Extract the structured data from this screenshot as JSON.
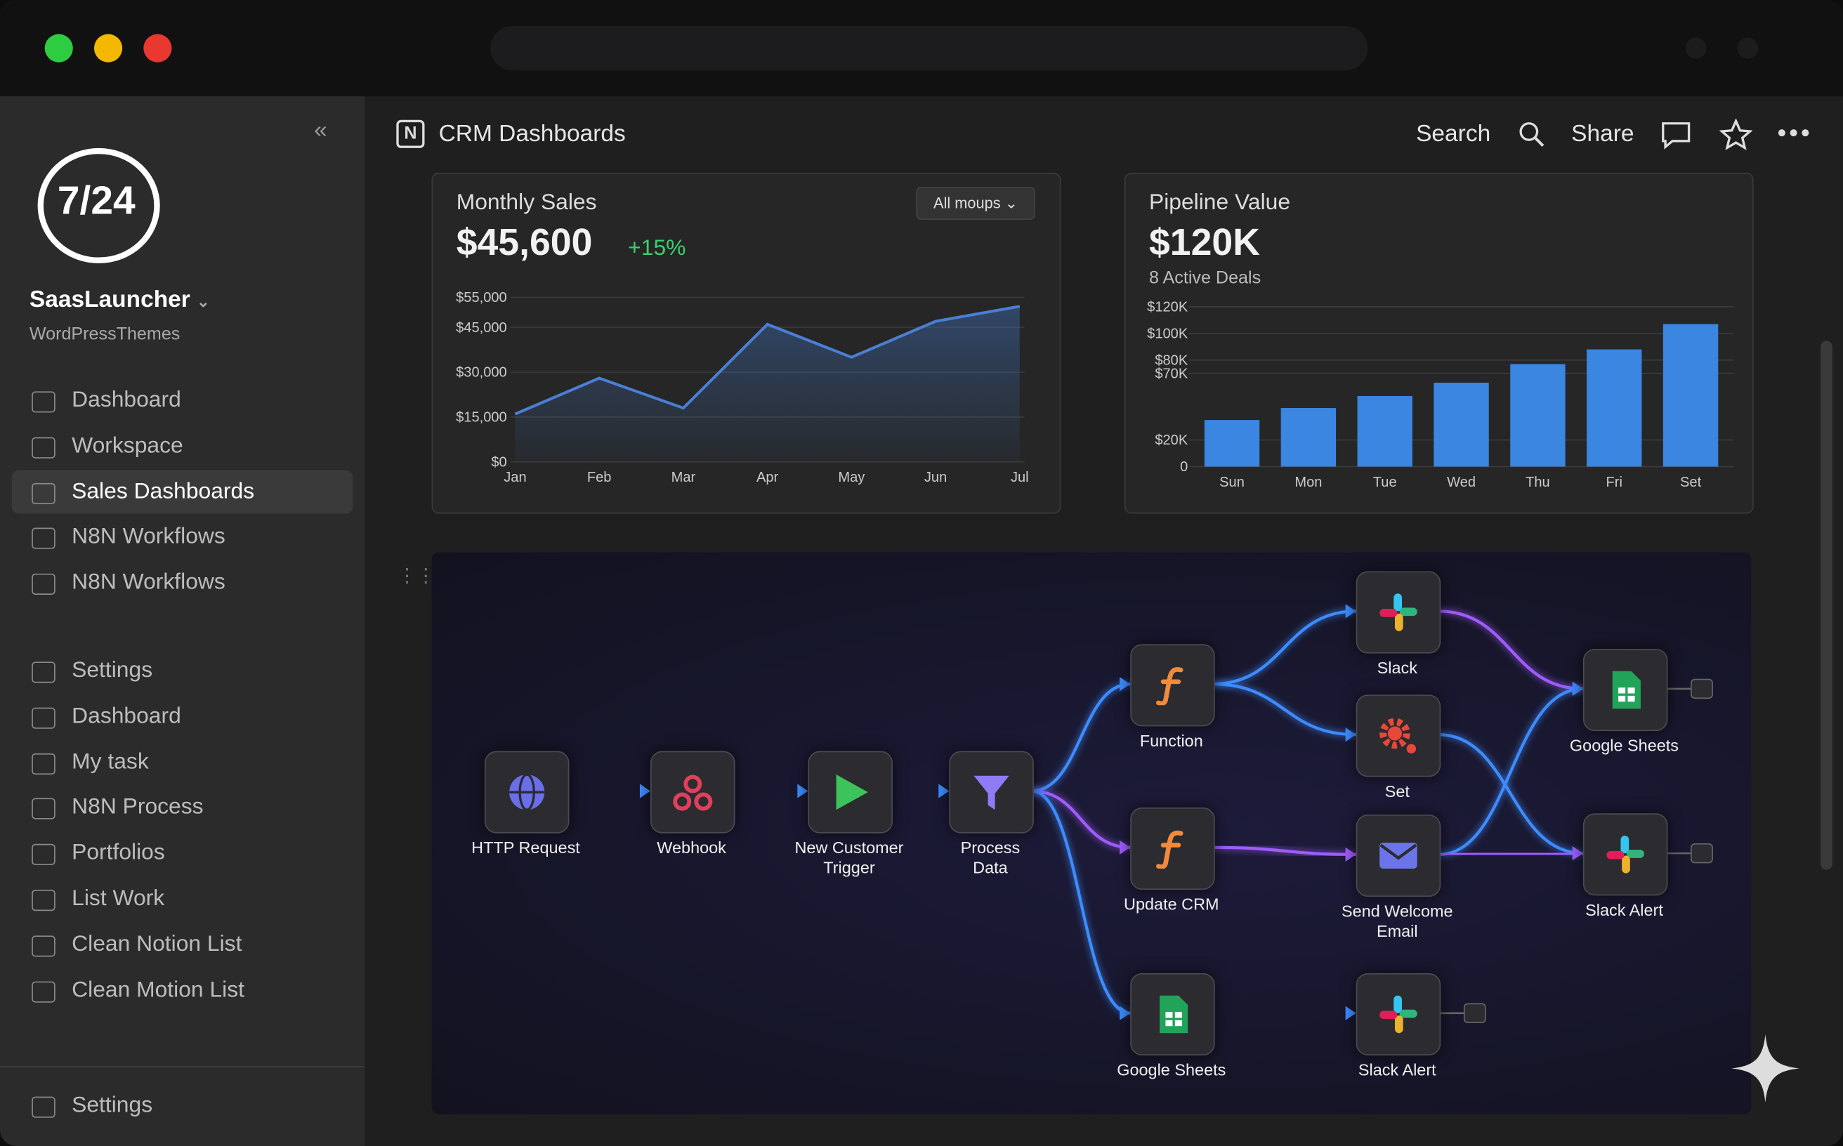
{
  "sidebar": {
    "logo": "7/24",
    "brand": "SaasLauncher",
    "subtitle": "WordPressThemes",
    "nav": [
      "Dashboard",
      "Workspace",
      "Sales Dashboards",
      "N8N Workflows",
      "N8N Workflows"
    ],
    "nav2": [
      "Settings",
      "Dashboard",
      "My task",
      "N8N Process",
      "Portfolios",
      "List Work",
      "Clean Notion List",
      "Clean Motion List"
    ],
    "footer": "Settings"
  },
  "header": {
    "title": "CRM Dashboards",
    "search": "Search",
    "share": "Share"
  },
  "chart_data": [
    {
      "type": "line",
      "title": "Monthly Sales",
      "headline": "$45,600",
      "change": "+15%",
      "filter": "All moups",
      "color": "#4a7fd4",
      "categories": [
        "Jan",
        "Feb",
        "Mar",
        "Apr",
        "May",
        "Jun",
        "Jul"
      ],
      "values": [
        16000,
        28000,
        18000,
        46000,
        35000,
        47000,
        52000
      ],
      "ylim": [
        0,
        55000
      ],
      "yticks": [
        {
          "value": 0,
          "label": "$0"
        },
        {
          "value": 15000,
          "label": "$15,000"
        },
        {
          "value": 30000,
          "label": "$30,000"
        },
        {
          "value": 45000,
          "label": "$45,000"
        },
        {
          "value": 55000,
          "label": "$55,000"
        }
      ],
      "grid": true
    },
    {
      "type": "bar",
      "title": "Pipeline Value",
      "headline": "$120K",
      "subtitle": "8 Active Deals",
      "color": "#3a86e0",
      "categories": [
        "Sun",
        "Mon",
        "Tue",
        "Wed",
        "Thu",
        "Fri",
        "Set"
      ],
      "values": [
        35000,
        44000,
        53000,
        63000,
        77000,
        88000,
        107000
      ],
      "ylim": [
        0,
        120000
      ],
      "yticks": [
        {
          "value": 120000,
          "label": "$120K"
        },
        {
          "value": 100000,
          "label": "$100K"
        },
        {
          "value": 70000,
          "label": "$70K"
        },
        {
          "value": 80000,
          "label": "$80K"
        },
        {
          "value": 20000,
          "label": "$20K"
        },
        0
      ],
      "grid": true
    }
  ],
  "workflow": {
    "nodes": [
      {
        "label": "HTTP Request"
      },
      {
        "label": "Webhook"
      },
      {
        "label": "New Customer Trigger"
      },
      {
        "label": "Process Data"
      },
      {
        "label": "Function"
      },
      {
        "label": "Update CRM"
      },
      {
        "label": "Google Sheets"
      },
      {
        "label": "Slack"
      },
      {
        "label": "Set"
      },
      {
        "label": "Send Welcome Email"
      },
      {
        "label": "Slack Alert"
      },
      {
        "label": "Google Sheets"
      },
      {
        "label": "Slack Alert"
      }
    ]
  }
}
